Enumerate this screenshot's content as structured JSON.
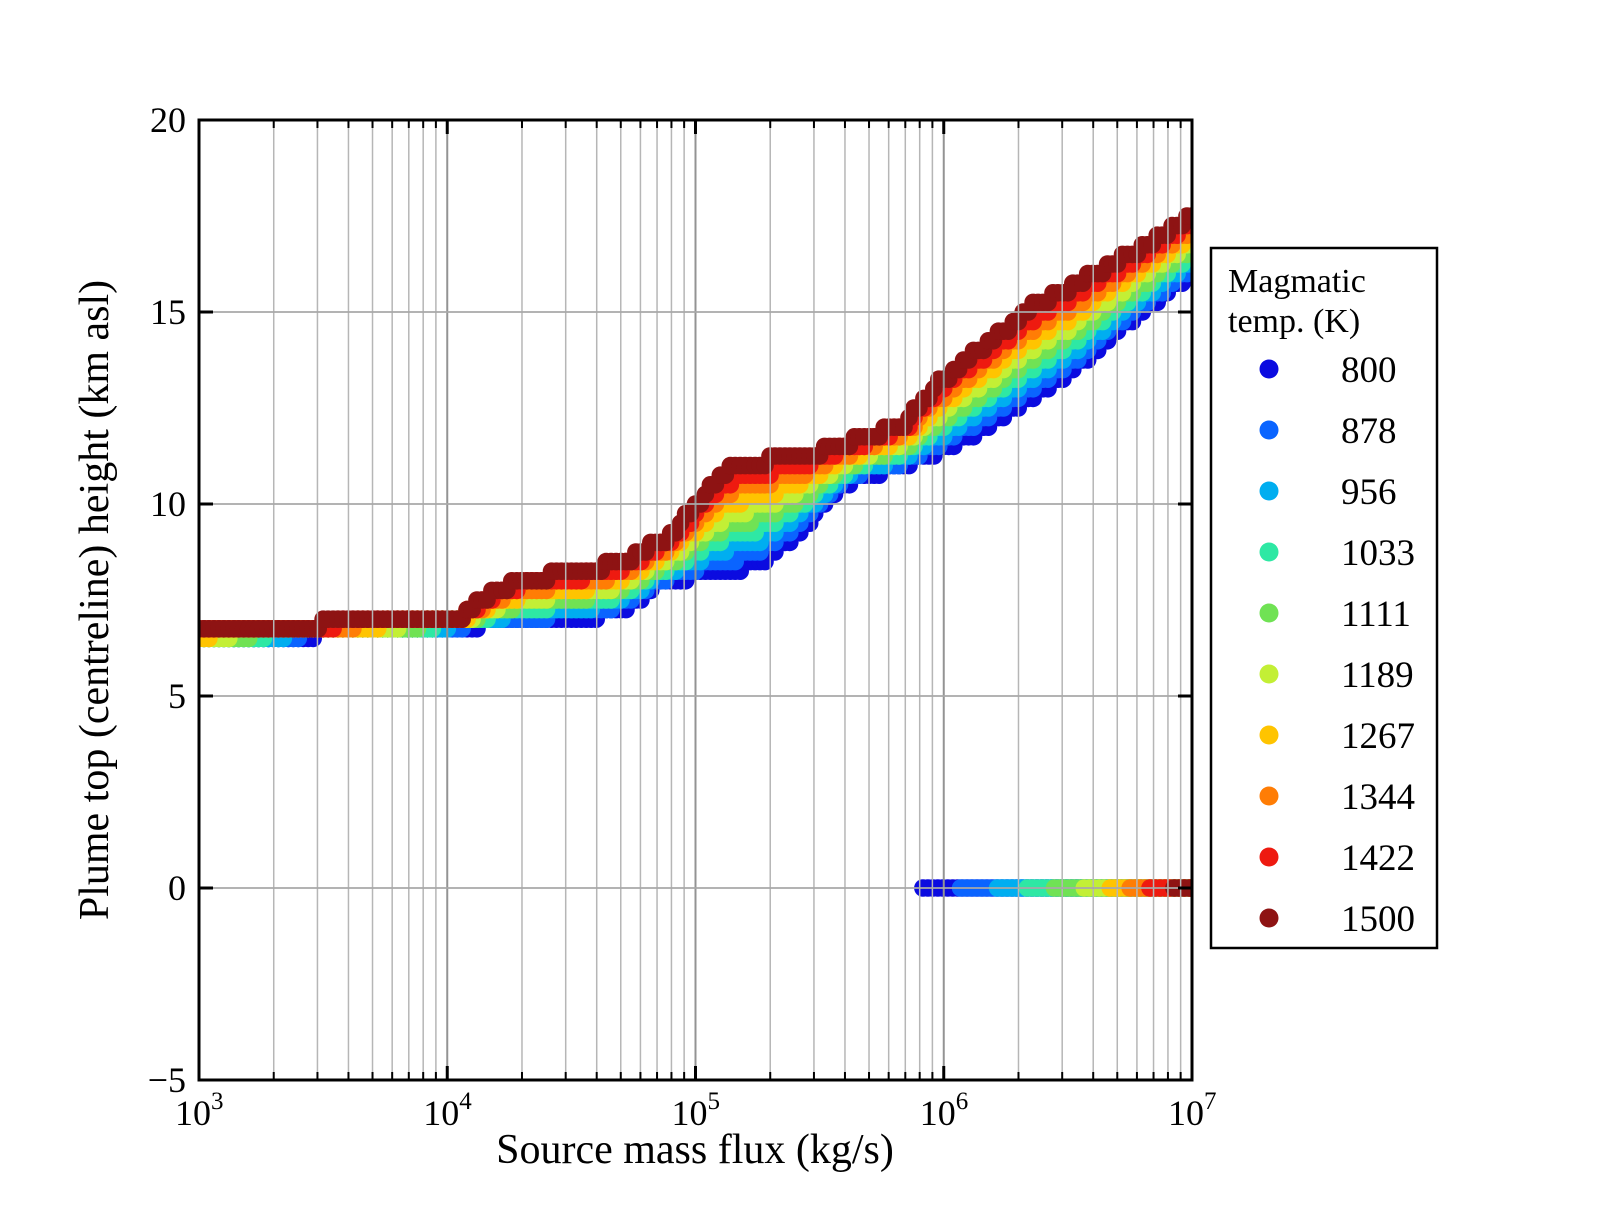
{
  "axes": {
    "xlabel": "Source mass flux (kg/s)",
    "ylabel": "Plume top (centreline) height (km asl)",
    "x_scale": "log",
    "xlim_exp": [
      3,
      7
    ],
    "ylim": [
      -5,
      20
    ],
    "x_ticks": [
      {
        "base": "10",
        "exp": "3"
      },
      {
        "base": "10",
        "exp": "4"
      },
      {
        "base": "10",
        "exp": "5"
      },
      {
        "base": "10",
        "exp": "6"
      },
      {
        "base": "10",
        "exp": "7"
      }
    ],
    "y_ticks": [
      {
        "label": "20",
        "value": 20,
        "grid": false
      },
      {
        "label": "15",
        "value": 15,
        "grid": true
      },
      {
        "label": "10",
        "value": 10,
        "grid": true
      },
      {
        "label": "5",
        "value": 5,
        "grid": true
      },
      {
        "label": "0",
        "value": 0,
        "grid": true
      },
      {
        "label": "−5",
        "value": -5,
        "grid": false
      }
    ],
    "minor_grid_color": "#b6b6b6",
    "major_grid_color": "#939393",
    "frame_color": "#000000"
  },
  "legend": {
    "title_line1": "Magmatic",
    "title_line2": "temp. (K)",
    "items": [
      {
        "label": "800",
        "color": "#0b0be0"
      },
      {
        "label": "878",
        "color": "#0a64ff"
      },
      {
        "label": "956",
        "color": "#00aef0"
      },
      {
        "label": "1033",
        "color": "#2ee8a4"
      },
      {
        "label": "1111",
        "color": "#70e254"
      },
      {
        "label": "1189",
        "color": "#c3ef35"
      },
      {
        "label": "1267",
        "color": "#ffc400"
      },
      {
        "label": "1344",
        "color": "#ff7d05"
      },
      {
        "label": "1422",
        "color": "#ee1a10"
      },
      {
        "label": "1500",
        "color": "#8e1313"
      }
    ]
  },
  "chart_data": {
    "type": "scatter",
    "title": "",
    "xlabel": "Source mass flux (kg/s)",
    "ylabel": "Plume top (centreline) height (km asl)",
    "x_log": true,
    "xlim": [
      1000,
      10000000
    ],
    "ylim": [
      -5,
      20
    ],
    "grid": true,
    "legend_position": "right",
    "series_temperatures_K": [
      800,
      878,
      956,
      1033,
      1111,
      1189,
      1267,
      1344,
      1422,
      1500
    ],
    "palette": [
      "#0b0be0",
      "#0a64ff",
      "#00aef0",
      "#2ee8a4",
      "#70e254",
      "#c3ef35",
      "#ffc400",
      "#ff7d05",
      "#ee1a10",
      "#8e1313"
    ],
    "band": {
      "description": "Rising band of plume-top heights vs log10(mass flux); per-temperature curves interpolated linearly between the 800 K bottom curve and the 1500 K top curve by temperature index, heights quantized to 0.25 km.",
      "height_quantum_km": 0.25,
      "bottom_curve_800K": [
        [
          3.0,
          6.42
        ],
        [
          3.3,
          6.55
        ],
        [
          3.6,
          6.68
        ],
        [
          3.9,
          6.78
        ],
        [
          4.05,
          6.84
        ],
        [
          4.3,
          6.94
        ],
        [
          4.5,
          7.05
        ],
        [
          4.65,
          7.15
        ],
        [
          4.75,
          7.45
        ],
        [
          4.82,
          7.85
        ],
        [
          4.95,
          8.1
        ],
        [
          5.05,
          8.22
        ],
        [
          5.18,
          8.35
        ],
        [
          5.28,
          8.6
        ],
        [
          5.38,
          9.1
        ],
        [
          5.48,
          9.75
        ],
        [
          5.58,
          10.45
        ],
        [
          5.68,
          10.8
        ],
        [
          5.8,
          10.95
        ],
        [
          5.95,
          11.3
        ],
        [
          6.1,
          11.8
        ],
        [
          6.3,
          12.55
        ],
        [
          6.5,
          13.4
        ],
        [
          6.7,
          14.55
        ],
        [
          6.85,
          15.3
        ],
        [
          7.0,
          16.05
        ]
      ],
      "top_curve_1500K": [
        [
          3.0,
          6.7
        ],
        [
          3.3,
          6.8
        ],
        [
          3.6,
          6.92
        ],
        [
          3.9,
          7.0
        ],
        [
          4.05,
          7.06
        ],
        [
          4.1,
          7.3
        ],
        [
          4.18,
          7.7
        ],
        [
          4.3,
          8.02
        ],
        [
          4.45,
          8.17
        ],
        [
          4.6,
          8.3
        ],
        [
          4.7,
          8.5
        ],
        [
          4.8,
          8.8
        ],
        [
          4.9,
          9.2
        ],
        [
          5.0,
          9.95
        ],
        [
          5.08,
          10.6
        ],
        [
          5.15,
          10.95
        ],
        [
          5.25,
          11.1
        ],
        [
          5.4,
          11.2
        ],
        [
          5.55,
          11.45
        ],
        [
          5.7,
          11.75
        ],
        [
          5.85,
          12.15
        ],
        [
          5.95,
          12.95
        ],
        [
          6.05,
          13.55
        ],
        [
          6.2,
          14.3
        ],
        [
          6.35,
          15.1
        ],
        [
          6.5,
          15.6
        ],
        [
          6.7,
          16.3
        ],
        [
          6.85,
          16.9
        ],
        [
          7.0,
          17.5
        ]
      ]
    },
    "collapse_row": {
      "description": "Row of points at 0 km; each temperature's points start at its onset flux and run to 1e7 kg/s.",
      "height_km": 0,
      "onset_log10_flux": [
        5.916,
        6.068,
        6.217,
        6.337,
        6.446,
        6.566,
        6.671,
        6.751,
        6.831,
        6.927
      ],
      "end_log10_flux": 7.0
    }
  }
}
